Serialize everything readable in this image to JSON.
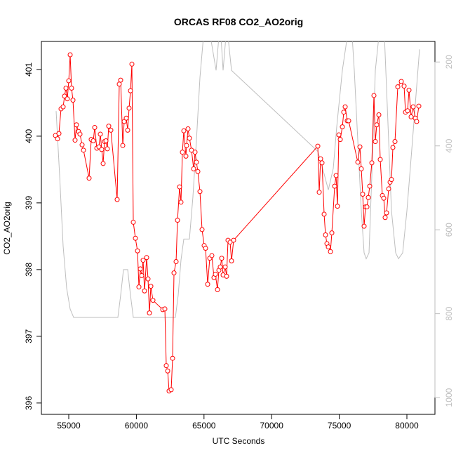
{
  "chart_data": {
    "type": "line",
    "title": "ORCAS RF08 CO2_AO2orig",
    "x_label": "UTC Seconds",
    "y_label": "CO2_AO2orig",
    "xlim": [
      52977,
      82075
    ],
    "ylim": [
      395.83,
      401.42
    ],
    "y2lim": [
      1040,
      151
    ],
    "xticks": [
      55000,
      60000,
      65000,
      70000,
      75000,
      80000
    ],
    "yticks": [
      396,
      397,
      398,
      399,
      400,
      401
    ],
    "y2ticks": [
      200,
      400,
      600,
      800,
      1000
    ],
    "series": [
      {
        "color": "#ff0000",
        "x": [
          54015,
          54170,
          54274,
          54429,
          54585,
          54689,
          54793,
          54896,
          55000,
          55104,
          55207,
          55311,
          55467,
          55571,
          55726,
          55830,
          55986,
          56089,
          56504,
          56660,
          56815,
          56919,
          57075,
          57230,
          57334,
          57438,
          57542,
          57645,
          57749,
          57853,
          57957,
          58112,
          58579,
          58735,
          58838,
          58994,
          59098,
          59253,
          59357,
          59461,
          59565,
          59668,
          59772,
          59928,
          60083,
          60187,
          60291,
          60394,
          60498,
          60602,
          60758,
          60861,
          60965,
          61069,
          61224,
          61951,
          62106,
          62210,
          62314,
          62417,
          62573,
          62677,
          62781,
          62936,
          63040,
          63195,
          63299,
          63403,
          63507,
          63662,
          63714,
          63818,
          63922,
          64077,
          64233,
          64337,
          64440,
          64544,
          64700,
          64855,
          65011,
          65115,
          65270,
          65426,
          65581,
          65737,
          65841,
          65996,
          66100,
          66204,
          66308,
          66411,
          66567,
          66671,
          66775,
          66930,
          67034,
          67189,
          73414,
          73518,
          73621,
          73725,
          73881,
          73984,
          74088,
          74192,
          74348,
          74451,
          74659,
          74763,
          74866,
          74970,
          75074,
          75229,
          75333,
          75437,
          75592,
          75696,
          76370,
          76526,
          76630,
          76733,
          76837,
          76941,
          77045,
          77148,
          77252,
          77408,
          77563,
          77667,
          77771,
          77926,
          78030,
          78186,
          78289,
          78393,
          78497,
          78652,
          78756,
          78860,
          78964,
          79119,
          79326,
          79586,
          79793,
          79897,
          80052,
          80156,
          80312,
          80467,
          80623,
          80726,
          80882
        ],
        "values": [
          400.01,
          399.96,
          400.04,
          400.41,
          400.44,
          400.6,
          400.72,
          400.56,
          400.83,
          401.22,
          400.72,
          400.54,
          399.94,
          400.17,
          400.07,
          400.03,
          399.87,
          399.79,
          399.37,
          399.95,
          399.93,
          400.13,
          399.82,
          399.84,
          400.03,
          399.8,
          399.59,
          399.92,
          399.93,
          399.81,
          400.15,
          400.09,
          399.05,
          400.78,
          400.84,
          399.86,
          400.22,
          400.27,
          400.09,
          400.42,
          400.68,
          401.08,
          398.71,
          398.47,
          398.28,
          397.74,
          398.01,
          397.91,
          398.14,
          397.68,
          398.18,
          397.86,
          397.35,
          397.75,
          397.54,
          397.4,
          397.41,
          396.56,
          396.48,
          396.18,
          396.2,
          396.67,
          397.95,
          398.12,
          398.74,
          399.24,
          399.01,
          399.76,
          400.08,
          399.7,
          399.86,
          400.11,
          399.97,
          399.79,
          399.51,
          399.76,
          399.61,
          399.47,
          399.17,
          398.6,
          398.36,
          398.32,
          397.78,
          398.17,
          398.21,
          397.88,
          397.93,
          397.7,
          397.99,
          398.04,
          398.17,
          397.92,
          398.04,
          397.9,
          398.44,
          398.41,
          398.13,
          398.44,
          399.85,
          399.16,
          399.66,
          399.6,
          398.83,
          398.52,
          398.39,
          398.34,
          398.27,
          398.55,
          399.25,
          399.41,
          398.95,
          400.02,
          399.95,
          400.14,
          400.36,
          400.44,
          400.23,
          400.23,
          399.61,
          399.84,
          399.51,
          399.13,
          398.65,
          398.94,
          398.94,
          399.08,
          399.25,
          399.6,
          400.61,
          399.92,
          400.17,
          400.32,
          399.65,
          399.11,
          399.07,
          398.78,
          398.85,
          399.21,
          399.31,
          399.35,
          399.83,
          399.92,
          400.74,
          400.82,
          400.75,
          400.36,
          400.38,
          400.69,
          400.29,
          400.44,
          400.27,
          400.22,
          400.45
        ]
      },
      {
        "color": "#bebebe",
        "axis": "y2",
        "x": [
          54066,
          54326,
          54585,
          54844,
          55104,
          55363,
          58631,
          58838,
          59046,
          59357,
          59565,
          59772,
          62884,
          63091,
          63299,
          63507,
          63922,
          64181,
          64440,
          64700,
          64959,
          65478,
          65893,
          66100,
          66256,
          66411,
          66619,
          66775,
          67034,
          73414,
          73777,
          74192,
          74555,
          74814,
          75229,
          75592,
          75955,
          76111,
          76370,
          76630,
          76837,
          76992,
          77200,
          77408,
          77667,
          77926,
          78341,
          78548,
          78860,
          79171,
          79378,
          79689,
          80000,
          80415,
          80934
        ],
        "values": [
          317,
          471,
          639,
          739,
          789,
          809,
          809,
          756,
          695,
          695,
          756,
          809,
          809,
          756,
          672,
          622,
          622,
          521,
          387,
          237,
          140,
          140,
          220,
          140,
          140,
          220,
          140,
          140,
          220,
          413,
          454,
          505,
          454,
          354,
          220,
          140,
          140,
          220,
          387,
          555,
          655,
          669,
          655,
          471,
          220,
          140,
          140,
          304,
          555,
          655,
          669,
          655,
          555,
          387,
          170
        ]
      }
    ]
  }
}
